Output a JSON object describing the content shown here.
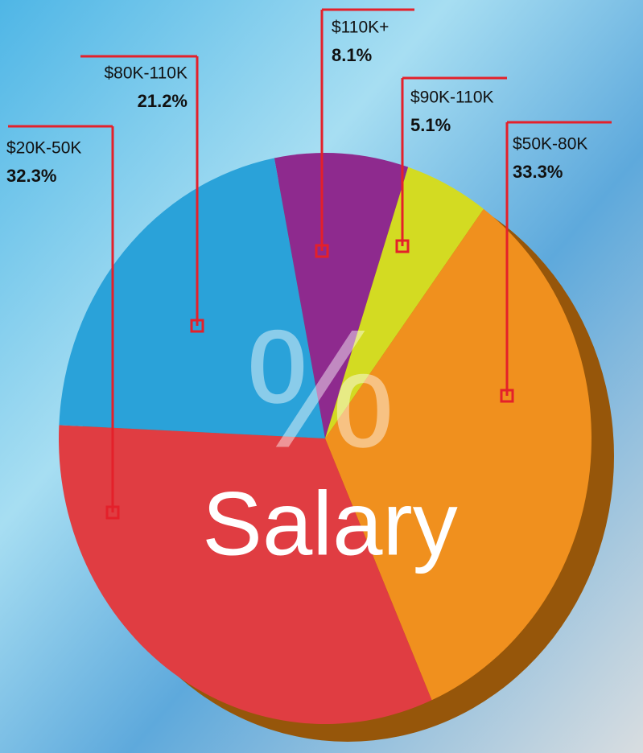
{
  "chart_data": {
    "type": "pie",
    "title": "Salary",
    "center_symbol": "%",
    "categories": [
      "$110K+",
      "$90K-110K",
      "$50K-80K",
      "$20K-50K",
      "$80K-110K"
    ],
    "values": [
      8.1,
      5.1,
      33.3,
      32.3,
      21.2
    ],
    "value_labels": [
      "8.1%",
      "5.1%",
      "33.3%",
      "32.3%",
      "21.2%"
    ],
    "colors": [
      "#8e2a8e",
      "#d3db22",
      "#f0901e",
      "#e03d42",
      "#2aa2d9"
    ]
  }
}
